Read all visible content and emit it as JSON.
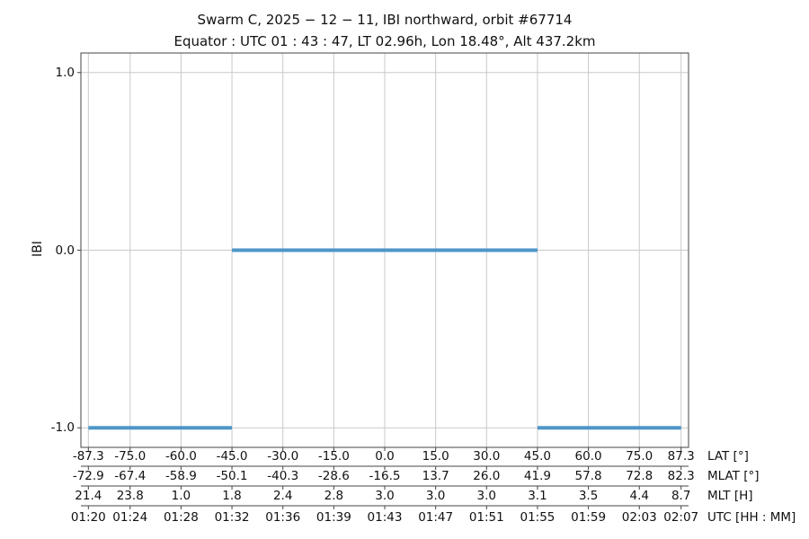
{
  "chart_data": {
    "type": "line",
    "title": "Swarm C,  2025 − 12 − 11,  IBI northward,  orbit #67714",
    "subtitle": "Equator :  UTC 01 : 43 : 47,  LT 02.96h,  Lon 18.48°,  Alt 437.2km",
    "ylabel": "IBI",
    "xlim": [
      -89.5,
      89.5
    ],
    "ylim": [
      -1.11,
      1.11
    ],
    "grid": true,
    "y_ticks": [
      {
        "label": "1.0",
        "value": 1.0
      },
      {
        "label": "0.0",
        "value": 0.0
      },
      {
        "label": "-1.0",
        "value": -1.0
      }
    ],
    "x_tick_lats": [
      -87.3,
      -75.0,
      -60.0,
      -45.0,
      -30.0,
      -15.0,
      0.0,
      15.0,
      30.0,
      45.0,
      60.0,
      75.0,
      87.3
    ],
    "x_rows": [
      {
        "label": "LAT [°]",
        "values": [
          "-87.3",
          "-75.0",
          "-60.0",
          "-45.0",
          "-30.0",
          "-15.0",
          "0.0",
          "15.0",
          "30.0",
          "45.0",
          "60.0",
          "75.0",
          "87.3"
        ]
      },
      {
        "label": "MLAT [°]",
        "values": [
          "-72.9",
          "-67.4",
          "-58.9",
          "-50.1",
          "-40.3",
          "-28.6",
          "-16.5",
          "13.7",
          "26.0",
          "41.9",
          "57.8",
          "72.8",
          "82.3"
        ]
      },
      {
        "label": "MLT [H]",
        "values": [
          "21.4",
          "23.8",
          "1.0",
          "1.8",
          "2.4",
          "2.8",
          "3.0",
          "3.0",
          "3.0",
          "3.1",
          "3.5",
          "4.4",
          "8.7"
        ]
      },
      {
        "label": "UTC [HH : MM]",
        "values": [
          "01:20",
          "01:24",
          "01:28",
          "01:32",
          "01:36",
          "01:39",
          "01:43",
          "01:47",
          "01:51",
          "01:55",
          "01:59",
          "02:03",
          "02:07"
        ]
      }
    ],
    "series": [
      {
        "name": "IBI",
        "segments": [
          {
            "y": -1.0,
            "lat_from": -87.3,
            "lat_to": -45.0
          },
          {
            "y": 0.0,
            "lat_from": -45.0,
            "lat_to": 45.0
          },
          {
            "y": -1.0,
            "lat_from": 45.0,
            "lat_to": 87.3
          }
        ]
      }
    ],
    "colors": {
      "line": "#4d96c9",
      "grid": "#c9c9c9",
      "spine": "#444444",
      "text": "#111111",
      "background": "#ffffff"
    }
  }
}
